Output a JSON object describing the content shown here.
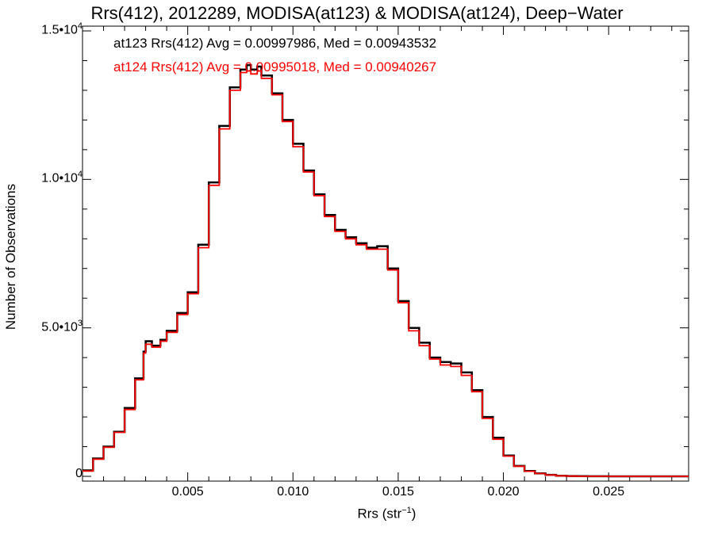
{
  "chart_data": {
    "type": "line",
    "title": "Rrs(412), 2012289, MODISA(at123) & MODISA(at124), Deep−Water",
    "xlabel": "Rrs (str",
    "xlabel_exp": "−1",
    "xlabel_close": ")",
    "ylabel": "Number of Observations",
    "xlim": [
      0.0,
      0.0288
    ],
    "ylim": [
      0,
      15000
    ],
    "x_ticks": [
      {
        "value": 0.005,
        "label": "0.005"
      },
      {
        "value": 0.01,
        "label": "0.010"
      },
      {
        "value": 0.015,
        "label": "0.015"
      },
      {
        "value": 0.02,
        "label": "0.020"
      },
      {
        "value": 0.025,
        "label": "0.025"
      }
    ],
    "y_ticks": [
      {
        "value": 0,
        "mant": "0",
        "exp": ""
      },
      {
        "value": 5000,
        "mant": "5.0•10",
        "exp": "3"
      },
      {
        "value": 10000,
        "mant": "1.0•10",
        "exp": "4"
      },
      {
        "value": 15000,
        "mant": "1.5•10",
        "exp": "4"
      }
    ],
    "legend": [
      {
        "text": "at123 Rrs(412) Avg = 0.00997986, Med = 0.00943532",
        "color": "#000000"
      },
      {
        "text": "at124 Rrs(412) Avg = 0.00995018, Med = 0.00940267",
        "color": "#ff0000"
      }
    ],
    "series": [
      {
        "color": "#000000",
        "x": [
          0.0,
          0.0005,
          0.001,
          0.0015,
          0.002,
          0.0025,
          0.0029,
          0.003,
          0.0033,
          0.0037,
          0.004,
          0.0045,
          0.005,
          0.0055,
          0.006,
          0.0065,
          0.007,
          0.0075,
          0.0078,
          0.008,
          0.0083,
          0.0085,
          0.009,
          0.0095,
          0.01,
          0.0105,
          0.011,
          0.0115,
          0.012,
          0.0125,
          0.013,
          0.0135,
          0.014,
          0.0145,
          0.015,
          0.0155,
          0.016,
          0.0165,
          0.017,
          0.0175,
          0.018,
          0.0185,
          0.019,
          0.0195,
          0.02,
          0.0205,
          0.021,
          0.0215,
          0.022,
          0.0225,
          0.023,
          0.0235,
          0.024,
          0.025,
          0.026,
          0.027,
          0.0288
        ],
        "y": [
          200,
          600,
          1000,
          1500,
          2300,
          3300,
          4200,
          4550,
          4400,
          4600,
          4900,
          5500,
          6200,
          7800,
          9900,
          11800,
          13100,
          13700,
          13850,
          13700,
          13800,
          13500,
          12900,
          12000,
          11200,
          10300,
          9500,
          8800,
          8300,
          8050,
          7850,
          7700,
          7750,
          7000,
          5900,
          5000,
          4500,
          4000,
          3850,
          3800,
          3500,
          2900,
          2000,
          1300,
          700,
          350,
          180,
          100,
          50,
          20,
          10,
          5,
          2,
          1,
          0,
          0,
          0
        ]
      },
      {
        "color": "#ff0000",
        "x": [
          0.0,
          0.0005,
          0.001,
          0.0015,
          0.002,
          0.0025,
          0.0029,
          0.003,
          0.0033,
          0.0037,
          0.004,
          0.0045,
          0.005,
          0.0055,
          0.006,
          0.0065,
          0.007,
          0.0075,
          0.0078,
          0.008,
          0.0083,
          0.0085,
          0.009,
          0.0095,
          0.01,
          0.0105,
          0.011,
          0.0115,
          0.012,
          0.0125,
          0.013,
          0.0135,
          0.014,
          0.0145,
          0.015,
          0.0155,
          0.016,
          0.0165,
          0.017,
          0.0175,
          0.018,
          0.0185,
          0.019,
          0.0195,
          0.02,
          0.0205,
          0.021,
          0.0215,
          0.022,
          0.0225,
          0.023,
          0.0235,
          0.024,
          0.025,
          0.026,
          0.027,
          0.0288
        ],
        "y": [
          180,
          580,
          980,
          1480,
          2250,
          3250,
          4150,
          4450,
          4350,
          4550,
          4850,
          5450,
          6150,
          7700,
          9800,
          11700,
          13000,
          13600,
          13650,
          13550,
          13650,
          13400,
          12850,
          11950,
          11100,
          10250,
          9450,
          8750,
          8250,
          8000,
          7800,
          7650,
          7650,
          6950,
          5850,
          4900,
          4400,
          3950,
          3750,
          3700,
          3400,
          2850,
          1950,
          1250,
          680,
          340,
          170,
          95,
          45,
          18,
          9,
          4,
          2,
          1,
          0,
          0,
          0
        ]
      }
    ]
  }
}
